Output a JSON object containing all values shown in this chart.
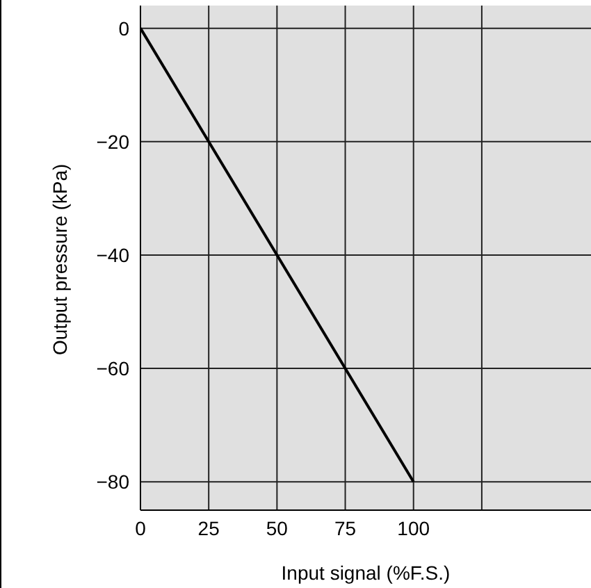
{
  "chart_data": {
    "type": "line",
    "xlabel": "Input signal (%F.S.)",
    "ylabel": "Output pressure (kPa)",
    "x": [
      0,
      100
    ],
    "series": [
      {
        "color": "#000000",
        "values": [
          0,
          -80
        ]
      }
    ],
    "xlim": [
      0,
      165
    ],
    "ylim": [
      -85,
      4
    ],
    "xticks": [
      0,
      25,
      50,
      75,
      100,
      {
        "value": 125,
        "label": null
      }
    ],
    "yticks": [
      -80,
      -60,
      -40,
      -20,
      0
    ],
    "grid": true,
    "legend": false,
    "marker": "none",
    "line_style": "solid"
  }
}
